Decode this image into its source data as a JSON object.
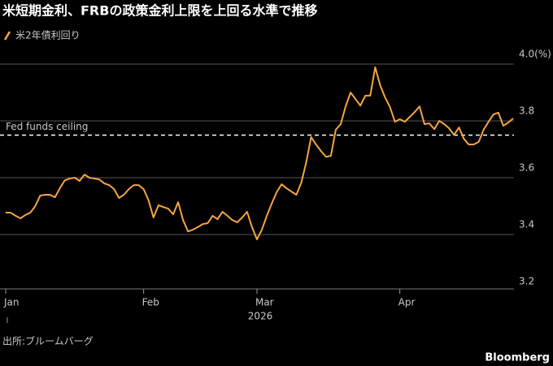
{
  "chart_data": {
    "type": "line",
    "title": "米短期金利、FRBの政策金利上限を上回る水準で推移",
    "categories": [
      "Jan",
      null,
      null,
      null,
      null,
      null,
      null,
      null,
      null,
      null,
      null,
      null,
      null,
      null,
      null,
      null,
      null,
      null,
      null,
      null,
      null,
      null,
      null,
      null,
      null,
      null,
      null,
      null,
      "Feb",
      null,
      null,
      null,
      null,
      null,
      null,
      null,
      null,
      null,
      null,
      null,
      null,
      null,
      null,
      null,
      null,
      null,
      null,
      null,
      null,
      null,
      null,
      "Mar",
      null,
      null,
      null,
      null,
      null,
      null,
      null,
      null,
      null,
      null,
      null,
      null,
      null,
      null,
      null,
      null,
      null,
      null,
      null,
      null,
      null,
      null,
      null,
      null,
      null,
      null,
      null,
      null,
      "Apr",
      null,
      null,
      null,
      null,
      null,
      null,
      null,
      null,
      null,
      null,
      null,
      null,
      null,
      null,
      null,
      null,
      null,
      null,
      null,
      null,
      null,
      null,
      null
    ],
    "x_year_label": "2026",
    "series": [
      {
        "name": "米2年債利回り",
        "color": "#f5a543",
        "values": [
          3.477,
          3.477,
          3.466,
          3.457,
          3.469,
          3.477,
          3.5,
          3.537,
          3.54,
          3.54,
          3.531,
          3.563,
          3.591,
          3.597,
          3.6,
          3.589,
          3.611,
          3.6,
          3.597,
          3.594,
          3.58,
          3.574,
          3.56,
          3.529,
          3.54,
          3.56,
          3.574,
          3.574,
          3.56,
          3.52,
          3.46,
          3.503,
          3.497,
          3.491,
          3.471,
          3.514,
          3.451,
          3.411,
          3.417,
          3.426,
          3.437,
          3.44,
          3.466,
          3.454,
          3.48,
          3.466,
          3.451,
          3.443,
          3.46,
          3.48,
          3.426,
          3.383,
          3.417,
          3.466,
          3.509,
          3.549,
          3.577,
          3.563,
          3.551,
          3.54,
          3.583,
          3.654,
          3.743,
          3.717,
          3.694,
          3.674,
          3.677,
          3.769,
          3.789,
          3.851,
          3.9,
          3.877,
          3.854,
          3.889,
          3.889,
          3.989,
          3.926,
          3.883,
          3.849,
          3.797,
          3.806,
          3.797,
          3.814,
          3.831,
          3.851,
          3.789,
          3.791,
          3.771,
          3.8,
          3.789,
          3.774,
          3.751,
          3.777,
          3.737,
          3.717,
          3.717,
          3.726,
          3.769,
          3.797,
          3.823,
          3.829,
          3.783,
          3.794,
          3.809
        ]
      }
    ],
    "ylim": [
      3.2,
      4.0
    ],
    "yticks": [
      3.2,
      3.4,
      3.6,
      3.8,
      {
        "value": 4.0,
        "label": "4.0(%)"
      }
    ],
    "grid": true,
    "reference_line": {
      "label": "Fed funds ceiling",
      "value": 3.75,
      "color": "#ffffff"
    },
    "source": "出所:ブルームバーグ",
    "brand": "Bloomberg"
  }
}
